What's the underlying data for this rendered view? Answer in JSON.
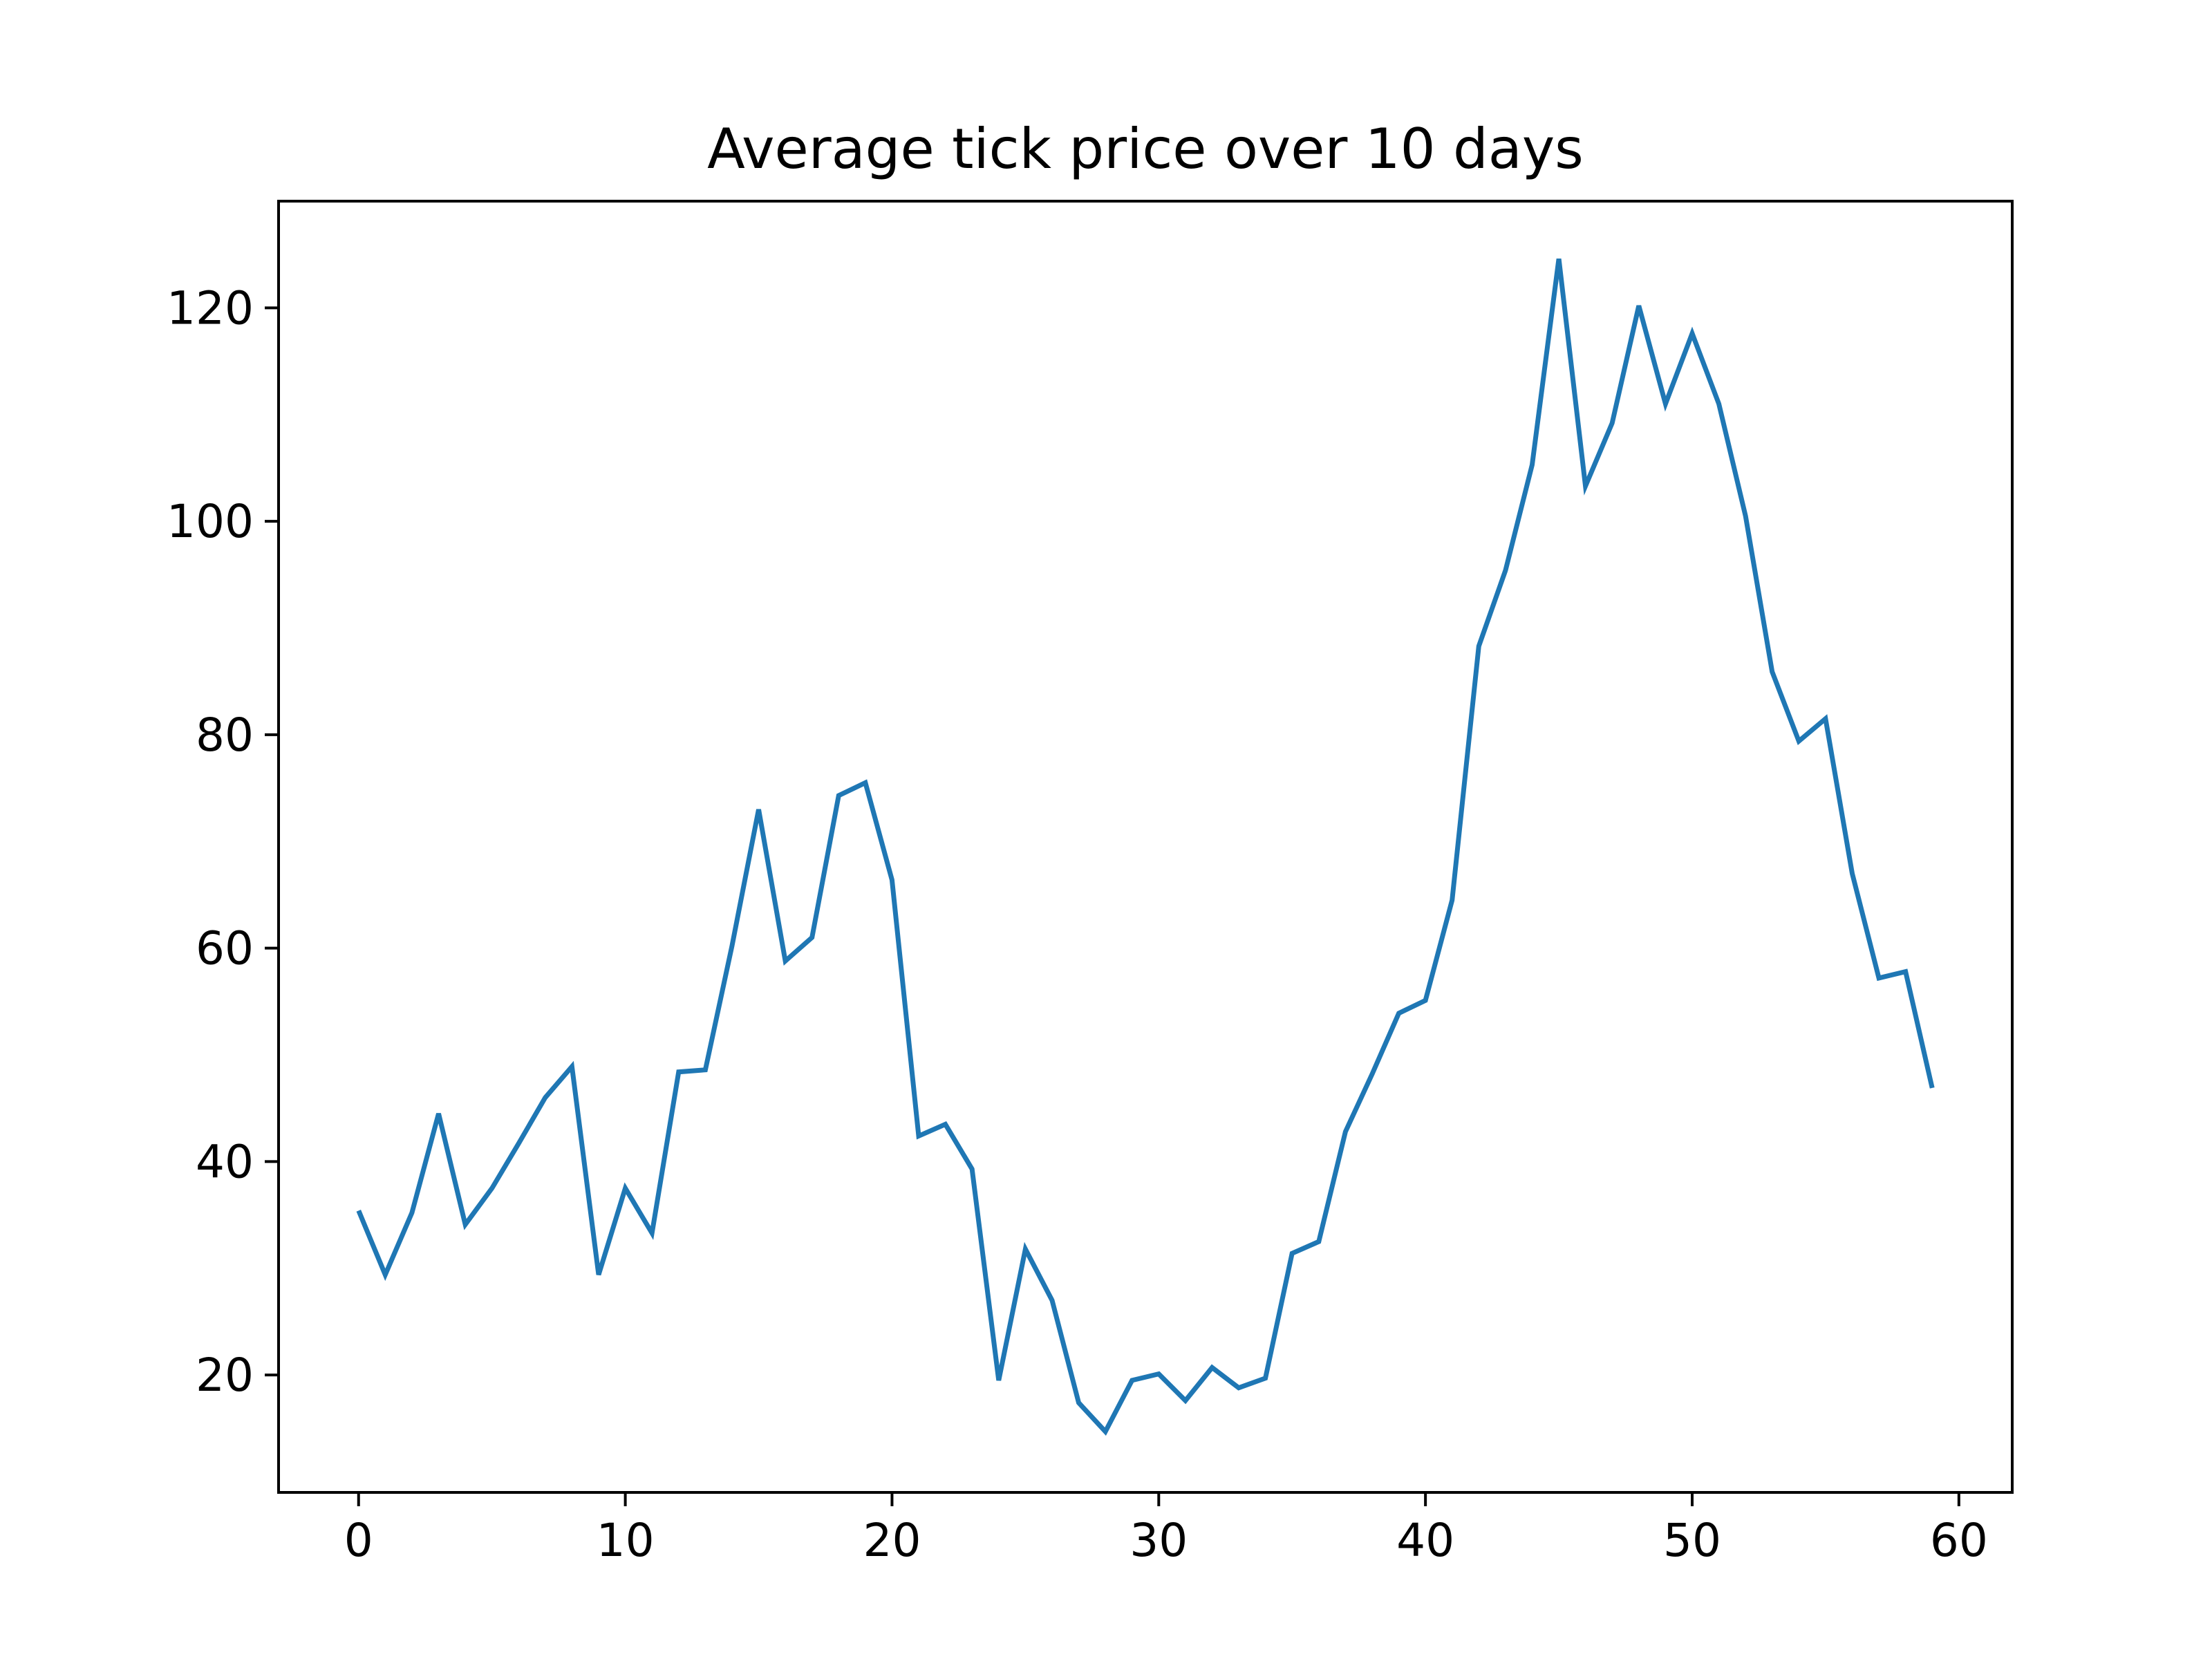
{
  "chart_data": {
    "type": "line",
    "title": "Average tick price over 10 days",
    "xlabel": "",
    "ylabel": "",
    "xlim": [
      -3,
      62
    ],
    "ylim": [
      9,
      130
    ],
    "x_ticks": [
      0,
      10,
      20,
      30,
      40,
      50,
      60
    ],
    "y_ticks": [
      20,
      40,
      60,
      80,
      100,
      120
    ],
    "grid": false,
    "colors": {
      "series": "#1f77b4",
      "axis": "#000000",
      "background": "#ffffff"
    },
    "series": [
      {
        "x": [
          0,
          1,
          2,
          3,
          4,
          5,
          6,
          7,
          8,
          9,
          10,
          11,
          12,
          13,
          14,
          15,
          16,
          17,
          18,
          19,
          20,
          21,
          22,
          23,
          24,
          25,
          26,
          27,
          28,
          29,
          30,
          31,
          32,
          33,
          34,
          35,
          36,
          37,
          38,
          39,
          40,
          41,
          42,
          43,
          44,
          45,
          46,
          47,
          48,
          49,
          50,
          51,
          52,
          53,
          54,
          55,
          56,
          57,
          58,
          59
        ],
        "values": [
          35.4,
          29.4,
          35.2,
          44.5,
          34.1,
          37.5,
          41.7,
          46.0,
          48.9,
          29.4,
          37.5,
          33.3,
          48.4,
          48.6,
          60.2,
          73.0,
          58.8,
          61.0,
          74.3,
          75.5,
          66.4,
          42.4,
          43.5,
          39.3,
          19.5,
          31.8,
          27.0,
          17.4,
          14.7,
          19.5,
          20.1,
          17.6,
          20.7,
          18.8,
          19.7,
          31.4,
          32.5,
          42.8,
          48.2,
          53.9,
          55.1,
          64.5,
          88.3,
          95.4,
          105.3,
          124.6,
          103.3,
          109.2,
          120.2,
          111.0,
          117.6,
          111.0,
          100.5,
          85.9,
          79.4,
          81.5,
          67.0,
          57.2,
          57.8,
          46.9
        ]
      }
    ]
  }
}
